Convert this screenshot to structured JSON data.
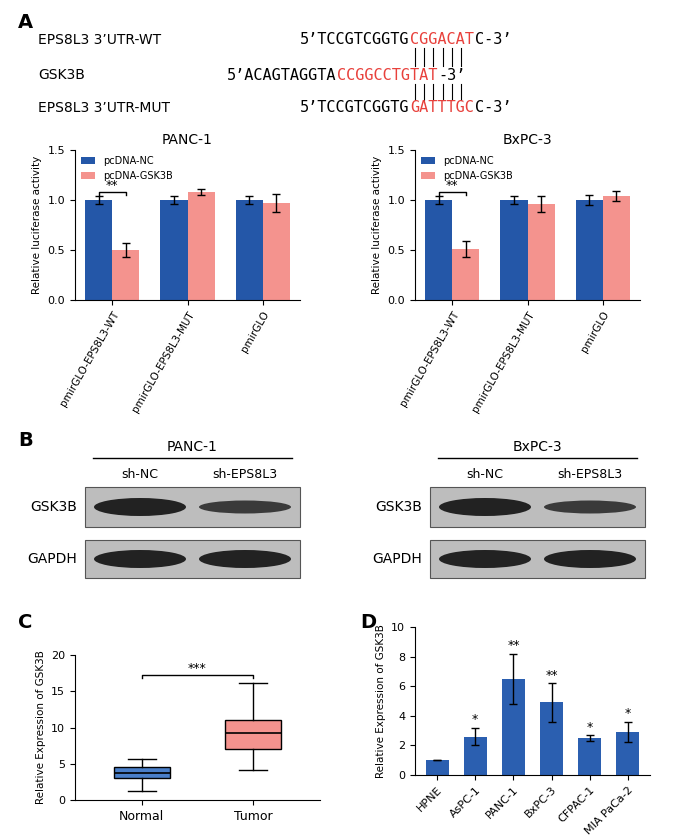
{
  "panel_labels": [
    "A",
    "B",
    "C",
    "D"
  ],
  "sequences": [
    {
      "label": "EPS8L3 3’UTR-WT",
      "segments": [
        {
          "text": "5’TCCGTCGGTG",
          "color": "#000000"
        },
        {
          "text": "CGGACAT",
          "color": "#e8413c"
        },
        {
          "text": "C-3’",
          "color": "#000000"
        }
      ]
    },
    {
      "label": "GSK3B",
      "segments": [
        {
          "text": "5’ACAGTAGGTA",
          "color": "#000000"
        },
        {
          "text": "CCGGCCTGTAT",
          "color": "#e8413c"
        },
        {
          "text": "-3’",
          "color": "#000000"
        }
      ]
    },
    {
      "label": "EPS8L3 3’UTR-MUT",
      "segments": [
        {
          "text": "5’TCCGTCGGTG",
          "color": "#000000"
        },
        {
          "text": "GATTTGC",
          "color": "#e8413c"
        },
        {
          "text": "C-3’",
          "color": "#000000"
        }
      ]
    }
  ],
  "western_blot": [
    {
      "cell_line": "PANC-1",
      "lanes": [
        "sh-NC",
        "sh-EPS8L3"
      ],
      "rows": [
        "GSK3B",
        "GAPDH"
      ]
    },
    {
      "cell_line": "BxPC-3",
      "lanes": [
        "sh-NC",
        "sh-EPS8L3"
      ],
      "rows": [
        "GSK3B",
        "GAPDH"
      ]
    }
  ],
  "chart_data": [
    {
      "type": "bar",
      "title": "PANC-1",
      "y_label": "Relative luciferase activity",
      "categories": [
        "pmirGLO-EPS8L3-WT",
        "pmirGLO-EPS8L3-MUT",
        "pmirGLO"
      ],
      "series": [
        {
          "name": "pcDNA-NC",
          "color": "#2457a8",
          "values": [
            1.0,
            1.0,
            1.0
          ],
          "errors": [
            0.04,
            0.04,
            0.04
          ]
        },
        {
          "name": "pcDNA-GSK3B",
          "color": "#f4938e",
          "values": [
            0.5,
            1.08,
            0.97
          ],
          "errors": [
            0.07,
            0.03,
            0.09
          ]
        }
      ],
      "significance": [
        {
          "category": "pmirGLO-EPS8L3-WT",
          "label": "**"
        }
      ],
      "ylim": [
        0,
        1.5
      ],
      "yticks": [
        {
          "value": 0,
          "label": "0.0"
        },
        0.5,
        {
          "value": 1,
          "label": "1.0"
        },
        1.5
      ],
      "legend": "upper left"
    },
    {
      "type": "bar",
      "title": "BxPC-3",
      "y_label": "Relative luciferase activity",
      "categories": [
        "pmirGLO-EPS8L3-WT",
        "pmirGLO-EPS8L3-MUT",
        "pmirGLO"
      ],
      "series": [
        {
          "name": "pcDNA-NC",
          "color": "#2457a8",
          "values": [
            1.0,
            1.0,
            1.0
          ],
          "errors": [
            0.04,
            0.04,
            0.05
          ]
        },
        {
          "name": "pcDNA-GSK3B",
          "color": "#f4938e",
          "values": [
            0.51,
            0.96,
            1.04
          ],
          "errors": [
            0.08,
            0.08,
            0.05
          ]
        }
      ],
      "significance": [
        {
          "category": "pmirGLO-EPS8L3-WT",
          "label": "**"
        }
      ],
      "ylim": [
        0,
        1.5
      ],
      "yticks": [
        {
          "value": 0,
          "label": "0.0"
        },
        0.5,
        {
          "value": 1,
          "label": "1.0"
        },
        1.5
      ],
      "legend": "upper left"
    },
    {
      "type": "box",
      "y_label": "Relative Expression of GSK3B",
      "categories": [
        "Normal",
        "Tumor"
      ],
      "colors": [
        "#4a7fc9",
        "#f4938e"
      ],
      "stats": [
        {
          "min": 1.2,
          "q1": 3.0,
          "median": 3.7,
          "q3": 4.5,
          "max": 5.6
        },
        {
          "min": 4.2,
          "q1": 7.0,
          "median": 9.2,
          "q3": 11.0,
          "max": 16.2
        }
      ],
      "significance": [
        {
          "categories": [
            "Normal",
            "Tumor"
          ],
          "label": "***"
        }
      ],
      "ylim": [
        0,
        20
      ],
      "yticks": [
        0,
        5,
        10,
        15,
        20
      ]
    },
    {
      "type": "bar",
      "y_label": "Relative Expression of GSK3B",
      "categories": [
        "HPNE",
        "AsPC-1",
        "PANC-1",
        "BxPC-3",
        "CFPAC-1",
        "MIA PaCa-2"
      ],
      "values": [
        1.0,
        2.6,
        6.5,
        4.9,
        2.5,
        2.9
      ],
      "errors": [
        0,
        0.6,
        1.7,
        1.3,
        0.2,
        0.7
      ],
      "annotations": [
        null,
        "*",
        "**",
        "**",
        "*",
        "*"
      ],
      "color": "#2b5fb0",
      "ylim": [
        0,
        10
      ],
      "yticks": [
        0,
        2,
        4,
        6,
        8,
        10
      ]
    }
  ]
}
